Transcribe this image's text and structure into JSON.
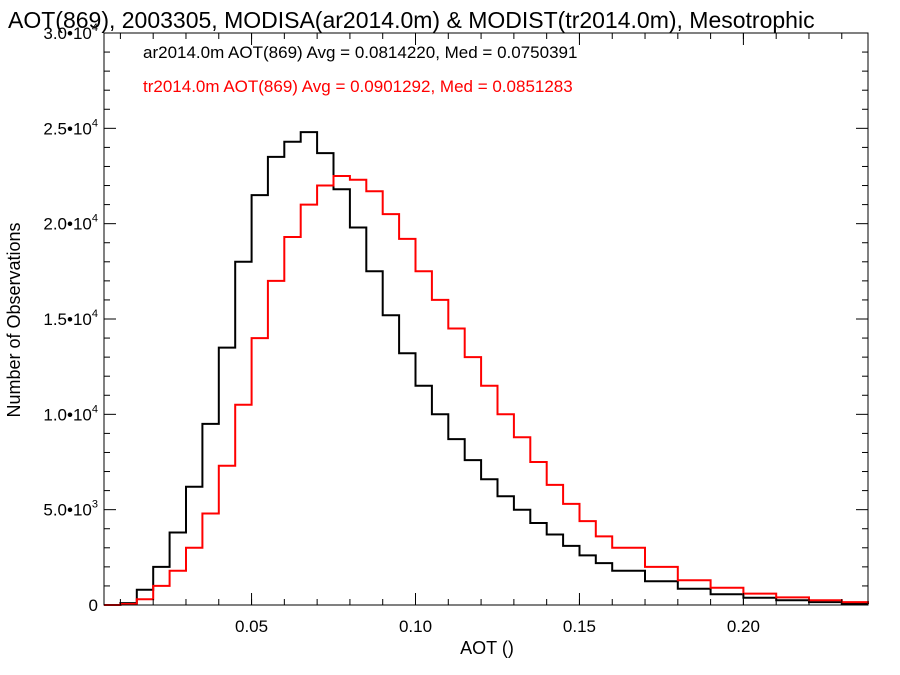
{
  "chart_data": {
    "type": "line",
    "title": "AOT(869), 2003305, MODISA(ar2014.0m) & MODIST(tr2014.0m), Mesotrophic",
    "xlabel": "AOT ()",
    "ylabel": "Number of Observations",
    "xlim": [
      0.005,
      0.238
    ],
    "ylim": [
      0,
      30000
    ],
    "xticks": [
      0.05,
      0.1,
      0.15,
      0.2
    ],
    "xtick_labels": [
      "0.05",
      "0.10",
      "0.15",
      "0.20"
    ],
    "yticks": [
      {
        "value": 0,
        "mantissa": "0",
        "exponent": ""
      },
      {
        "value": 5000,
        "mantissa": "5.0•10",
        "exponent": "3"
      },
      {
        "value": 10000,
        "mantissa": "1.0•10",
        "exponent": "4"
      },
      {
        "value": 15000,
        "mantissa": "1.5•10",
        "exponent": "4"
      },
      {
        "value": 20000,
        "mantissa": "2.0•10",
        "exponent": "4"
      },
      {
        "value": 25000,
        "mantissa": "2.5•10",
        "exponent": "4"
      },
      {
        "value": 30000,
        "mantissa": "3.0•10",
        "exponent": "4"
      }
    ],
    "grid": false,
    "legend": "top-left",
    "series": [
      {
        "name": "ar2014.0m",
        "label": "ar2014.0m AOT(869) Avg = 0.0814220, Med = 0.0750391",
        "color": "#000000",
        "style": "step",
        "x": [
          0.005,
          0.01,
          0.015,
          0.02,
          0.025,
          0.03,
          0.035,
          0.04,
          0.045,
          0.05,
          0.055,
          0.06,
          0.065,
          0.07,
          0.075,
          0.08,
          0.085,
          0.09,
          0.095,
          0.1,
          0.105,
          0.11,
          0.115,
          0.12,
          0.125,
          0.13,
          0.135,
          0.14,
          0.145,
          0.15,
          0.155,
          0.16,
          0.17,
          0.18,
          0.19,
          0.2,
          0.21,
          0.22,
          0.23,
          0.238
        ],
        "y": [
          0,
          100,
          800,
          2000,
          3800,
          6200,
          9500,
          13500,
          18000,
          21500,
          23500,
          24300,
          24800,
          23700,
          21800,
          19800,
          17500,
          15200,
          13200,
          11500,
          10000,
          8700,
          7600,
          6600,
          5700,
          5000,
          4300,
          3700,
          3100,
          2600,
          2200,
          1800,
          1250,
          850,
          560,
          380,
          250,
          150,
          80,
          50
        ]
      },
      {
        "name": "tr2014.0m",
        "label": "tr2014.0m AOT(869) Avg = 0.0901292, Med = 0.0851283",
        "color": "#ff0000",
        "style": "step",
        "x": [
          0.005,
          0.01,
          0.015,
          0.02,
          0.025,
          0.03,
          0.035,
          0.04,
          0.045,
          0.05,
          0.055,
          0.06,
          0.065,
          0.07,
          0.075,
          0.08,
          0.085,
          0.09,
          0.095,
          0.1,
          0.105,
          0.11,
          0.115,
          0.12,
          0.125,
          0.13,
          0.135,
          0.14,
          0.145,
          0.15,
          0.155,
          0.16,
          0.17,
          0.18,
          0.19,
          0.2,
          0.21,
          0.22,
          0.23,
          0.238
        ],
        "y": [
          0,
          50,
          300,
          1000,
          1800,
          3000,
          4800,
          7300,
          10500,
          14000,
          17000,
          19300,
          21000,
          22000,
          22500,
          22300,
          21700,
          20500,
          19200,
          17500,
          16000,
          14500,
          13000,
          11500,
          10000,
          8800,
          7500,
          6300,
          5300,
          4400,
          3600,
          3000,
          2000,
          1300,
          900,
          600,
          400,
          250,
          150,
          80
        ]
      }
    ]
  }
}
